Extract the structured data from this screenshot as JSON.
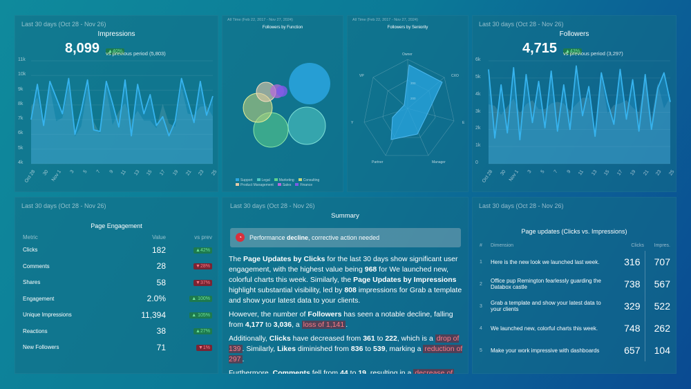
{
  "impressions": {
    "range": "Last 30 days (Oct 28 - Nov 26)",
    "title": "Impressions",
    "value": "8,099",
    "change": "▲40%",
    "vs": "vs previous period (5,803)",
    "yticks": [
      "11k",
      "10k",
      "9k",
      "8k",
      "7k",
      "6k",
      "5k",
      "4k"
    ],
    "xticks": [
      "Oct 28",
      "30",
      "Nov 1",
      "3",
      "5",
      "7",
      "9",
      "11",
      "13",
      "15",
      "17",
      "19",
      "21",
      "23",
      "25"
    ]
  },
  "function": {
    "range": "All Time (Feb 22, 2017 - Nov 27, 2024)",
    "title": "Followers by Function",
    "legend": [
      "Support",
      "Legal",
      "Marketing",
      "Consulting",
      "Product Management",
      "Sales",
      "Finance"
    ],
    "legend_colors": [
      "#2aa6e0",
      "#4ec7c2",
      "#5dd38d",
      "#c7d67a",
      "#e6c9a6",
      "#b56ad9",
      "#7c5be6"
    ]
  },
  "seniority": {
    "range": "All Time (Feb 22, 2017 - Nov 27, 2024)",
    "title": "Followers by Seniority",
    "axes": [
      "Owner",
      "CXO",
      "",
      "Manager",
      "Partner",
      "",
      "VP"
    ],
    "axis_e": "E",
    "axis_w": "Y",
    "ring1": "300",
    "ring2": "200"
  },
  "followers": {
    "range": "Last 30 days (Oct 28 - Nov 26)",
    "title": "Followers",
    "value": "4,715",
    "change": "▲43%",
    "vs": "vs previous period (3,297)",
    "yticks": [
      "6k",
      "5k",
      "4k",
      "3k",
      "2k",
      "1k",
      "0"
    ],
    "xticks": [
      "Oct 28",
      "30",
      "Nov 1",
      "3",
      "5",
      "7",
      "9",
      "11",
      "13",
      "15",
      "17",
      "19",
      "21",
      "23",
      "25"
    ]
  },
  "engagement": {
    "range": "Last 30 days (Oct 28 - Nov 26)",
    "title": "Page Engagement",
    "headers": [
      "Metric",
      "Value",
      "vs prev"
    ],
    "rows": [
      {
        "metric": "Clicks",
        "value": "182",
        "change": "▲42%",
        "dir": "up"
      },
      {
        "metric": "Comments",
        "value": "28",
        "change": "▼28%",
        "dir": "down"
      },
      {
        "metric": "Shares",
        "value": "58",
        "change": "▼37%",
        "dir": "down"
      },
      {
        "metric": "Engagement",
        "value": "2.0%",
        "change": "▲ 100%",
        "dir": "up"
      },
      {
        "metric": "Unique Impressions",
        "value": "11,394",
        "change": "▲ 105%",
        "dir": "up"
      },
      {
        "metric": "Reactions",
        "value": "38",
        "change": "▲27%",
        "dir": "up"
      },
      {
        "metric": "New Followers",
        "value": "71",
        "change": "▼1%",
        "dir": "down"
      }
    ]
  },
  "summary": {
    "range": "Last 30 days (Oct 28 - Nov 26)",
    "title": "Summary",
    "alert_pre": "Performance ",
    "alert_bold": "decline",
    "alert_post": ", corrective action needed"
  },
  "updates": {
    "range": "Last 30 days (Oct 28 - Nov 26)",
    "title": "Page updates (Clicks vs. Impressions)",
    "headers": [
      "#",
      "Dimension",
      "Clicks",
      "Impres."
    ],
    "rows": [
      {
        "n": "1",
        "dim": "Here is the new look we launched last week.",
        "clicks": "316",
        "impr": "707"
      },
      {
        "n": "2",
        "dim": "Office pup Remington fearlessly guarding the Databox castle",
        "clicks": "738",
        "impr": "567"
      },
      {
        "n": "3",
        "dim": "Grab a template and show your latest data to your clients",
        "clicks": "329",
        "impr": "522"
      },
      {
        "n": "4",
        "dim": "We launched new, colorful charts this week.",
        "clicks": "748",
        "impr": "262"
      },
      {
        "n": "5",
        "dim": "Make your work impressive with dashboards",
        "clicks": "657",
        "impr": "104"
      }
    ]
  },
  "chart_data": [
    {
      "type": "area",
      "title": "Impressions",
      "x": [
        "Oct 28",
        "Oct 29",
        "Oct 30",
        "Oct 31",
        "Nov 1",
        "Nov 2",
        "Nov 3",
        "Nov 4",
        "Nov 5",
        "Nov 6",
        "Nov 7",
        "Nov 8",
        "Nov 9",
        "Nov 10",
        "Nov 11",
        "Nov 12",
        "Nov 13",
        "Nov 14",
        "Nov 15",
        "Nov 16",
        "Nov 17",
        "Nov 18",
        "Nov 19",
        "Nov 20",
        "Nov 21",
        "Nov 22",
        "Nov 23",
        "Nov 24",
        "Nov 25",
        "Nov 26"
      ],
      "series": [
        {
          "values": [
            7.0,
            9.4,
            6.6,
            9.6,
            8.5,
            7.4,
            9.8,
            6.0,
            7.6,
            9.7,
            6.3,
            6.2,
            9.6,
            8.1,
            6.5,
            9.7,
            5.9,
            9.4,
            7.4,
            8.7,
            6.6,
            7.2,
            5.9,
            6.9,
            9.8,
            8.3,
            6.8,
            9.6,
            7.3,
            8.6
          ]
        }
      ],
      "ylim": [
        4000,
        11000
      ]
    },
    {
      "type": "scatter",
      "title": "Followers by Function",
      "series": [
        {
          "name": "Support",
          "values": [
            100
          ]
        },
        {
          "name": "Legal",
          "values": [
            80
          ]
        },
        {
          "name": "Marketing",
          "values": [
            70
          ]
        },
        {
          "name": "Consulting",
          "values": [
            55
          ]
        },
        {
          "name": "Product Management",
          "values": [
            35
          ]
        },
        {
          "name": "Sales",
          "values": [
            28
          ]
        },
        {
          "name": "Finance",
          "values": [
            22
          ]
        }
      ]
    },
    {
      "type": "area",
      "title": "Followers by Seniority",
      "categories": [
        "Owner",
        "CXO",
        "E",
        "Manager",
        "Partner",
        "Y",
        "VP"
      ],
      "series": [
        {
          "values": [
            280,
            260,
            150,
            200,
            120,
            130,
            60
          ]
        }
      ]
    },
    {
      "type": "area",
      "title": "Followers",
      "x": [
        "Oct 28",
        "Oct 29",
        "Oct 30",
        "Oct 31",
        "Nov 1",
        "Nov 2",
        "Nov 3",
        "Nov 4",
        "Nov 5",
        "Nov 6",
        "Nov 7",
        "Nov 8",
        "Nov 9",
        "Nov 10",
        "Nov 11",
        "Nov 12",
        "Nov 13",
        "Nov 14",
        "Nov 15",
        "Nov 16",
        "Nov 17",
        "Nov 18",
        "Nov 19",
        "Nov 20",
        "Nov 21",
        "Nov 22",
        "Nov 23",
        "Nov 24",
        "Nov 25",
        "Nov 26"
      ],
      "series": [
        {
          "values": [
            5.5,
            1.5,
            4.6,
            1.8,
            5.6,
            1.4,
            5.2,
            2.4,
            4.8,
            2.1,
            5.4,
            1.9,
            4.6,
            2.0,
            5.7,
            2.8,
            4.5,
            1.6,
            5.3,
            3.6,
            2.3,
            5.5,
            2.6,
            4.9,
            1.9,
            5.2,
            2.0,
            4.4,
            5.3,
            3.6
          ]
        }
      ],
      "ylim": [
        0,
        6000
      ]
    }
  ]
}
